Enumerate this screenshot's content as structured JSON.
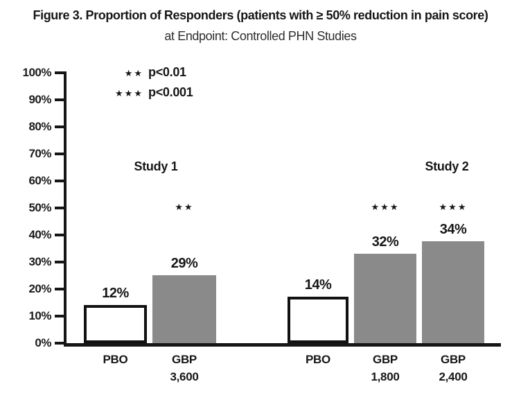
{
  "figure": {
    "title": "Figure 3. Proportion of Responders (patients with ≥ 50% reduction in pain score)",
    "subtitle": "at Endpoint: Controlled PHN Studies"
  },
  "chart_data": {
    "type": "bar",
    "title": "Figure 3. Proportion of Responders (patients with ≥ 50% reduction in pain score)",
    "subtitle": "at Endpoint: Controlled PHN Studies",
    "xlabel": "",
    "ylabel": "",
    "y_axis": {
      "min": 0,
      "max": 100,
      "step": 10,
      "tick_suffix": "%",
      "tick_labels": [
        "0%",
        "10%",
        "20%",
        "30%",
        "40%",
        "50%",
        "60%",
        "70%",
        "80%",
        "90%",
        "100%"
      ]
    },
    "grid": "off",
    "legend_position": "upper-left-inside",
    "legend": [
      {
        "significance": "**",
        "text": "p<0.01"
      },
      {
        "significance": "***",
        "text": "p<0.001"
      }
    ],
    "groups": [
      {
        "name": "Study 1",
        "bars": [
          {
            "treatment": "PBO",
            "value": 12,
            "label": "12%",
            "visual_height_pct": 14.1,
            "fill": "white",
            "significance": "",
            "x_label_lines": [
              "PBO"
            ]
          },
          {
            "treatment": "GBP 3,600",
            "value": 29,
            "label": "29%",
            "visual_height_pct": 25.1,
            "fill": "gray",
            "significance": "**",
            "x_label_lines": [
              "GBP",
              "3,600"
            ]
          }
        ]
      },
      {
        "name": "Study 2",
        "bars": [
          {
            "treatment": "PBO",
            "value": 14,
            "label": "14%",
            "visual_height_pct": 17.2,
            "fill": "white",
            "significance": "",
            "x_label_lines": [
              "PBO"
            ]
          },
          {
            "treatment": "GBP 1,800",
            "value": 32,
            "label": "32%",
            "visual_height_pct": 33.1,
            "fill": "gray",
            "significance": "***",
            "x_label_lines": [
              "GBP",
              "1,800"
            ]
          },
          {
            "treatment": "GBP 2,400",
            "value": 34,
            "label": "34%",
            "visual_height_pct": 37.7,
            "fill": "gray",
            "significance": "***",
            "x_label_lines": [
              "GBP",
              "2,400"
            ]
          }
        ]
      }
    ],
    "colors": {
      "bar_gray": "#8a8a8a",
      "bar_white": "#ffffff",
      "axis_black": "#161616"
    }
  }
}
